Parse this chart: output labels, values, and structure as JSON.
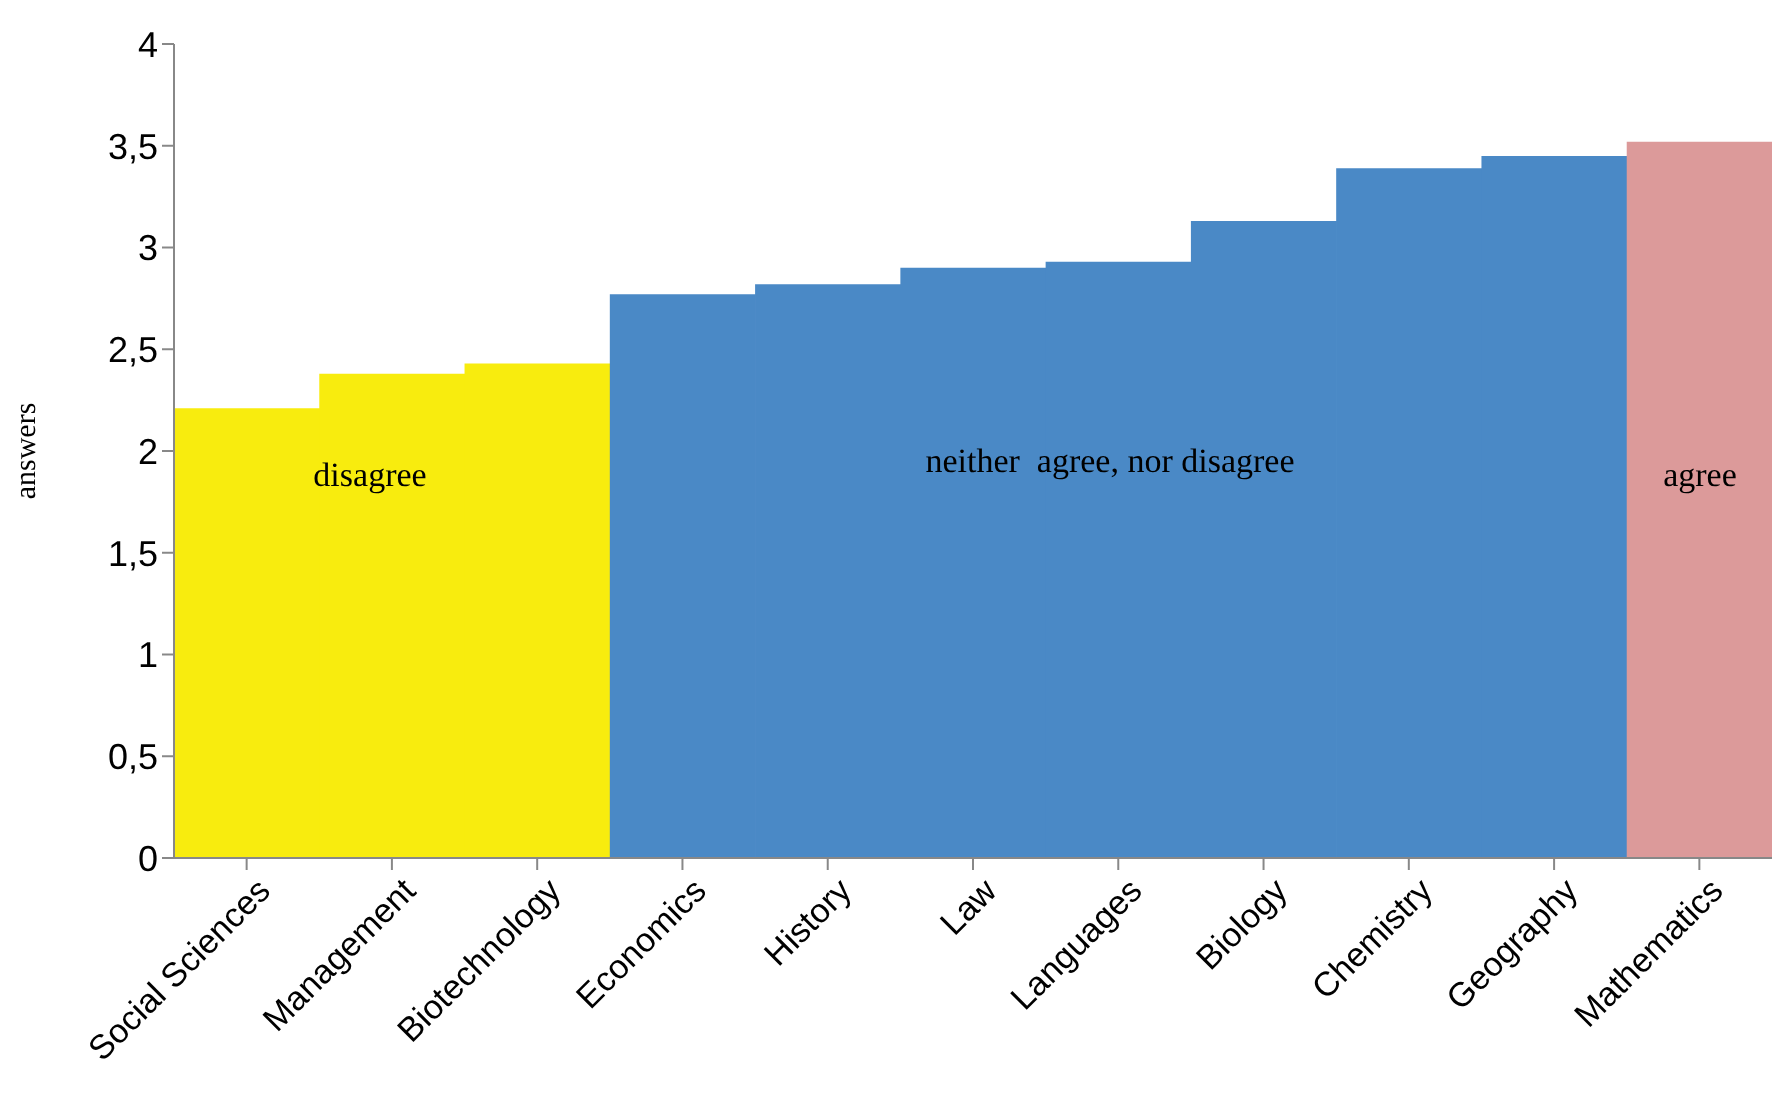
{
  "chart_data": {
    "type": "bar",
    "ylabel": "answers",
    "categories": [
      "Social Sciences",
      "Management",
      "Biotechnology",
      "Economics",
      "History",
      "Law",
      "Languages",
      "Biology",
      "Chemistry",
      "Geography",
      "Mathematics"
    ],
    "values": [
      2.21,
      2.38,
      2.43,
      2.77,
      2.82,
      2.9,
      2.93,
      3.13,
      3.39,
      3.45,
      3.52
    ],
    "colors": [
      "#f8ec0e",
      "#f8ec0e",
      "#f8ec0e",
      "#4a89c6",
      "#4a89c6",
      "#4a89c6",
      "#4a89c6",
      "#4a89c6",
      "#4a89c6",
      "#4a89c6",
      "#dc9a9a"
    ],
    "ylim": [
      0,
      4
    ],
    "yticks": [
      0,
      {
        "value": 0.5,
        "label": "0,5"
      },
      1,
      {
        "value": 1.5,
        "label": "1,5"
      },
      2,
      {
        "value": 2.5,
        "label": "2,5"
      },
      3,
      {
        "value": 3.5,
        "label": "3,5"
      },
      4
    ],
    "grid": false,
    "legend": false,
    "annotations": [
      "disagree",
      "neither  agree, nor disagree",
      "agree"
    ]
  }
}
